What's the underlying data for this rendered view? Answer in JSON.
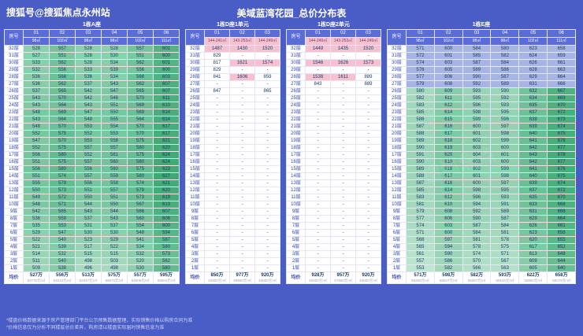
{
  "page": {
    "byline": "搜狐号@搜狐焦点永州站",
    "title": "美域蓝湾花园_总价分布表",
    "watermark": "搜狐焦点",
    "footnotes": [
      "*楼盘价格数据来源于房产管理部门平台公示预售数据整理，实际销售价格以购房合同为准",
      "*价格信息仅为分析不同楼层总价差异，购房请以楼盘实际届时销售信息为准"
    ]
  },
  "colors": {
    "background": "#4a5cc5",
    "header": "#5a6cd8",
    "pink": "#f6c2d1",
    "green_dark": "#3fa973",
    "green_light": "#a8dcc0",
    "blue_row": "#a6b4e6"
  },
  "floors": [
    "32层",
    "31层",
    "30层",
    "29层",
    "28层",
    "27层",
    "26层",
    "25层",
    "24层",
    "23层",
    "22层",
    "21层",
    "20层",
    "19层",
    "18层",
    "17层",
    "16层",
    "15层",
    "14层",
    "13层",
    "12层",
    "11层",
    "10层",
    "9层",
    "8层",
    "7层",
    "6层",
    "5层",
    "4层",
    "3层",
    "2层",
    "1层"
  ],
  "chart_data": [
    {
      "type": "table",
      "name": "1栋A座",
      "room_label": "房号",
      "columns": [
        "01",
        "02",
        "03",
        "04",
        "05",
        "06"
      ],
      "sizes": [
        "98㎡",
        "102㎡",
        "98㎡",
        "98㎡",
        "102㎡",
        "111㎡"
      ],
      "style": {
        "type": "green",
        "light": "#a8dcc0",
        "dark": "#3fa973"
      },
      "rows": [
        [
          528,
          557,
          528,
          528,
          557,
          601
        ],
        [
          527,
          551,
          528,
          530,
          551,
          600
        ],
        [
          533,
          562,
          528,
          534,
          562,
          601
        ],
        [
          532,
          556,
          533,
          539,
          556,
          600
        ],
        [
          536,
          568,
          536,
          534,
          568,
          603
        ],
        [
          536,
          562,
          537,
          543,
          562,
          607
        ],
        [
          537,
          565,
          542,
          547,
          565,
          607
        ],
        [
          543,
          570,
          542,
          546,
          570,
          611
        ],
        [
          543,
          564,
          543,
          551,
          569,
          610
        ],
        [
          548,
          569,
          547,
          550,
          569,
          614
        ],
        [
          543,
          564,
          548,
          555,
          564,
          614
        ],
        [
          548,
          570,
          553,
          554,
          570,
          617
        ],
        [
          552,
          575,
          552,
          553,
          570,
          617
        ],
        [
          547,
          570,
          553,
          558,
          575,
          621
        ],
        [
          552,
          575,
          557,
          557,
          580,
          620
        ],
        [
          556,
          580,
          552,
          561,
          575,
          624
        ],
        [
          551,
          575,
          557,
          560,
          580,
          624
        ],
        [
          556,
          580,
          556,
          560,
          575,
          623
        ],
        [
          551,
          574,
          557,
          559,
          580,
          627
        ],
        [
          555,
          579,
          556,
          558,
          574,
          621
        ],
        [
          550,
          573,
          551,
          557,
          579,
          620
        ],
        [
          549,
          572,
          550,
          551,
          573,
          619
        ],
        [
          548,
          571,
          544,
          550,
          567,
          613
        ],
        [
          542,
          565,
          543,
          544,
          566,
          607
        ],
        [
          536,
          559,
          537,
          543,
          560,
          606
        ],
        [
          535,
          553,
          531,
          537,
          554,
          600
        ],
        [
          529,
          547,
          530,
          530,
          548,
          594
        ],
        [
          522,
          540,
          523,
          529,
          541,
          587
        ],
        [
          521,
          539,
          517,
          522,
          534,
          580
        ],
        [
          514,
          532,
          515,
          515,
          532,
          573
        ],
        [
          511,
          540,
          498,
          503,
          520,
          562
        ],
        [
          509,
          538,
          496,
          498,
          530,
          580
        ]
      ],
      "avg_label": "均价",
      "avg": [
        "527万",
        "556万",
        "513万",
        "575万",
        "557万",
        "595万"
      ],
      "avg_sub": [
        "53776元/㎡",
        "54510元/㎡",
        "52347元/㎡",
        "58673元/㎡",
        "54608元/㎡",
        "53604元/㎡"
      ]
    },
    {
      "type": "table",
      "name": "1栋D座1单元",
      "room_label": "房号",
      "columns": [
        "01",
        "02",
        "03"
      ],
      "sizes": [
        "144-241㎡",
        "143-253㎡",
        "144-249㎡"
      ],
      "style": {
        "type": "dash",
        "pink": "#f6c2d1"
      },
      "rows": [
        [
          1487,
          1430,
          1520
        ],
        [
          829,
          null,
          null
        ],
        [
          817,
          1621,
          1574
        ],
        [
          829,
          null,
          null
        ],
        [
          841,
          1606,
          859
        ],
        [
          null,
          null,
          null
        ],
        [
          847,
          null,
          865
        ],
        [
          null,
          null,
          null
        ],
        [
          null,
          null,
          null
        ],
        [
          null,
          null,
          null
        ],
        [
          null,
          null,
          null
        ],
        [
          null,
          null,
          null
        ],
        [
          null,
          null,
          null
        ],
        [
          null,
          null,
          null
        ],
        [
          null,
          null,
          null
        ],
        [
          null,
          null,
          null
        ],
        [
          null,
          null,
          null
        ],
        [
          null,
          null,
          null
        ],
        [
          null,
          null,
          null
        ],
        [
          null,
          null,
          null
        ],
        [
          null,
          null,
          null
        ],
        [
          null,
          null,
          null
        ],
        [
          null,
          null,
          null
        ],
        [
          null,
          null,
          null
        ],
        [
          null,
          null,
          null
        ],
        [
          null,
          null,
          null
        ],
        [
          null,
          null,
          null
        ],
        [
          null,
          null,
          null
        ],
        [
          null,
          null,
          null
        ],
        [
          null,
          null,
          null
        ],
        [
          null,
          null,
          null
        ],
        [
          null,
          null,
          null
        ]
      ],
      "avg_label": "均价",
      "avg": [
        "850万",
        "977万",
        "920万"
      ],
      "avg_sub": [
        "42500元/㎡",
        "48850元/㎡",
        "46000元/㎡"
      ]
    },
    {
      "type": "table",
      "name": "1栋D座2单元",
      "room_label": "房号",
      "columns": [
        "01",
        "02",
        "03"
      ],
      "sizes": [
        "144-249㎡",
        "143-253㎡",
        "144-249㎡"
      ],
      "style": {
        "type": "dash",
        "pink": "#f6c2d1"
      },
      "rows": [
        [
          1449,
          1435,
          1520
        ],
        [
          null,
          null,
          null
        ],
        [
          1546,
          1626,
          1573
        ],
        [
          null,
          null,
          null
        ],
        [
          1538,
          1611,
          889
        ],
        [
          843,
          null,
          889
        ],
        [
          null,
          null,
          null
        ],
        [
          null,
          null,
          null
        ],
        [
          null,
          null,
          null
        ],
        [
          null,
          null,
          null
        ],
        [
          null,
          null,
          null
        ],
        [
          null,
          null,
          null
        ],
        [
          null,
          null,
          null
        ],
        [
          null,
          null,
          null
        ],
        [
          null,
          null,
          null
        ],
        [
          null,
          null,
          null
        ],
        [
          null,
          null,
          null
        ],
        [
          null,
          null,
          null
        ],
        [
          null,
          null,
          null
        ],
        [
          null,
          null,
          null
        ],
        [
          null,
          null,
          null
        ],
        [
          null,
          null,
          null
        ],
        [
          null,
          null,
          null
        ],
        [
          null,
          null,
          null
        ],
        [
          null,
          null,
          null
        ],
        [
          null,
          null,
          null
        ],
        [
          null,
          null,
          null
        ],
        [
          null,
          null,
          null
        ],
        [
          null,
          null,
          null
        ],
        [
          null,
          null,
          null
        ],
        [
          null,
          null,
          null
        ],
        [
          null,
          null,
          null
        ]
      ],
      "avg_label": "均价",
      "avg": [
        "928万",
        "957万",
        "920万"
      ],
      "avg_sub": [
        "46400元/㎡",
        "47850元/㎡",
        "46000元/㎡"
      ]
    },
    {
      "type": "table",
      "name": "1栋E座",
      "room_label": "房号",
      "columns": [
        "01",
        "02",
        "03",
        "04",
        "05",
        "06"
      ],
      "sizes": [
        "98㎡",
        "102㎡",
        "98㎡",
        "98㎡",
        "102㎡",
        "111㎡"
      ],
      "style": {
        "type": "green",
        "light": "#bfe6d2",
        "dark": "#46ad78",
        "top_blue": {
          "count": 6,
          "color": "#a6b4e6"
        }
      },
      "rows": [
        [
          571,
          600,
          584,
          580,
          623,
          658
        ],
        [
          572,
          601,
          585,
          582,
          624,
          659
        ],
        [
          574,
          603,
          587,
          584,
          626,
          661
        ],
        [
          576,
          605,
          589,
          586,
          628,
          663
        ],
        [
          577,
          606,
          590,
          587,
          629,
          664
        ],
        [
          579,
          608,
          592,
          589,
          631,
          666
        ],
        [
          580,
          609,
          593,
          590,
          632,
          667
        ],
        [
          582,
          611,
          595,
          592,
          634,
          669
        ],
        [
          583,
          612,
          596,
          593,
          635,
          670
        ],
        [
          585,
          614,
          598,
          595,
          637,
          672
        ],
        [
          586,
          615,
          599,
          596,
          638,
          673
        ],
        [
          587,
          616,
          600,
          597,
          639,
          674
        ],
        [
          588,
          617,
          601,
          598,
          640,
          675
        ],
        [
          589,
          618,
          602,
          599,
          641,
          676
        ],
        [
          590,
          619,
          603,
          600,
          642,
          677
        ],
        [
          591,
          620,
          604,
          601,
          643,
          678
        ],
        [
          590,
          619,
          603,
          600,
          642,
          677
        ],
        [
          589,
          618,
          602,
          599,
          641,
          676
        ],
        [
          588,
          617,
          601,
          598,
          640,
          675
        ],
        [
          587,
          616,
          600,
          597,
          639,
          674
        ],
        [
          585,
          614,
          598,
          595,
          637,
          672
        ],
        [
          583,
          612,
          596,
          593,
          635,
          670
        ],
        [
          581,
          610,
          594,
          591,
          633,
          668
        ],
        [
          579,
          608,
          592,
          589,
          631,
          666
        ],
        [
          577,
          606,
          590,
          587,
          629,
          664
        ],
        [
          574,
          603,
          587,
          584,
          626,
          661
        ],
        [
          571,
          600,
          584,
          581,
          623,
          658
        ],
        [
          568,
          597,
          581,
          578,
          620,
          655
        ],
        [
          565,
          594,
          578,
          575,
          617,
          652
        ],
        [
          561,
          590,
          574,
          571,
          613,
          648
        ],
        [
          557,
          586,
          570,
          567,
          609,
          644
        ],
        [
          553,
          582,
          566,
          563,
          605,
          640
        ]
      ],
      "avg_label": "均价",
      "avg": [
        "571万",
        "598万",
        "582万",
        "593万",
        "622万",
        "658万"
      ],
      "avg_sub": [
        "58265元/㎡",
        "58627元/㎡",
        "59387元/㎡",
        "60510元/㎡",
        "60980元/㎡",
        "59279元/㎡"
      ]
    }
  ]
}
